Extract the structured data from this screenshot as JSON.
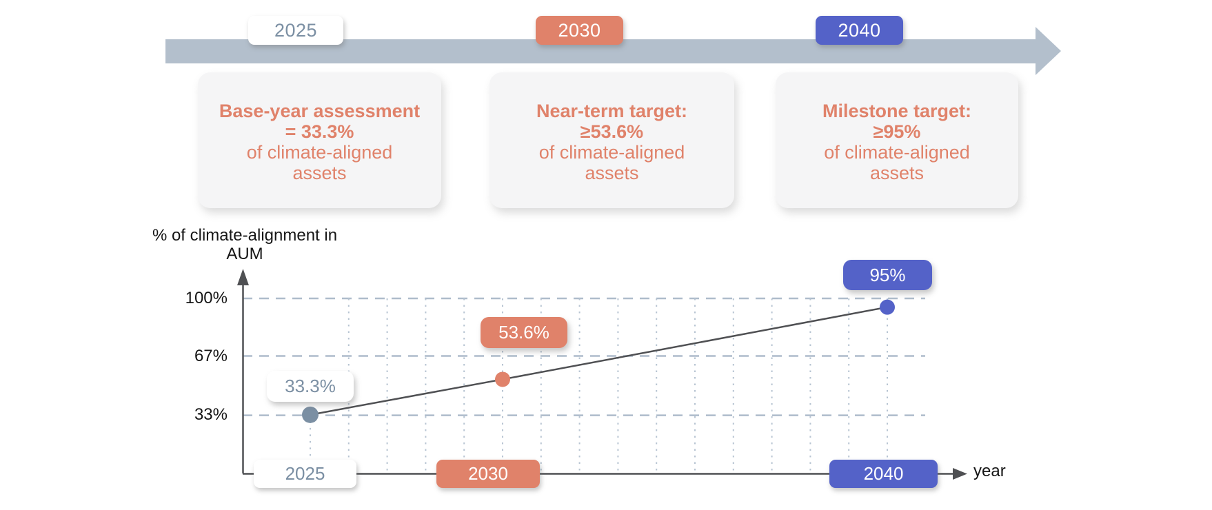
{
  "colors": {
    "salmon": "#E0826A",
    "blue": "#5462C8",
    "slate": "#7B8FA3",
    "timeline_gray": "#B3BFCC",
    "grid": "#AEBCCB",
    "axis": "#4F5053",
    "card_bg": "#F5F5F6"
  },
  "timeline": {
    "milestones": [
      {
        "year": "2025",
        "title_lines": [
          "Base-year assessment",
          "= 33.3%"
        ],
        "body_lines": [
          "of climate-aligned",
          "assets"
        ]
      },
      {
        "year": "2030",
        "title_lines": [
          "Near-term target:",
          "≥53.6%"
        ],
        "body_lines": [
          "of climate-aligned",
          "assets"
        ]
      },
      {
        "year": "2040",
        "title_lines": [
          "Milestone target:",
          "≥95%"
        ],
        "body_lines": [
          "of climate-aligned",
          "assets"
        ]
      }
    ]
  },
  "chart": {
    "y_axis_label_line1": "% of climate-alignment in",
    "y_axis_label_line2": "AUM",
    "x_axis_label": "year",
    "y_tick_labels": [
      "100%",
      "67%",
      "33%"
    ],
    "point_labels": [
      "33.3%",
      "53.6%",
      "95%"
    ],
    "x_tick_labels": [
      "2025",
      "2030",
      "2040"
    ]
  },
  "chart_data": {
    "type": "line",
    "x": [
      2025,
      2030,
      2040
    ],
    "values": [
      33.3,
      53.6,
      95
    ],
    "point_labels": [
      "33.3%",
      "53.6%",
      "95%"
    ],
    "point_colors": [
      "#7B8FA3",
      "#E0826A",
      "#5462C8"
    ],
    "title": "",
    "xlabel": "year",
    "ylabel": "% of climate-alignment in AUM",
    "yticks": [
      {
        "value": 100,
        "label": "100%"
      },
      {
        "value": 67,
        "label": "67%"
      },
      {
        "value": 33,
        "label": "33%"
      }
    ],
    "xticks_years": [
      2025,
      2030,
      2040
    ],
    "ylim": [
      0,
      110
    ],
    "xlim": [
      2025,
      2040
    ],
    "grid": {
      "horizontal": "dashed",
      "vertical": "dotted",
      "vertical_interval_years": 1
    },
    "legend": "none"
  }
}
